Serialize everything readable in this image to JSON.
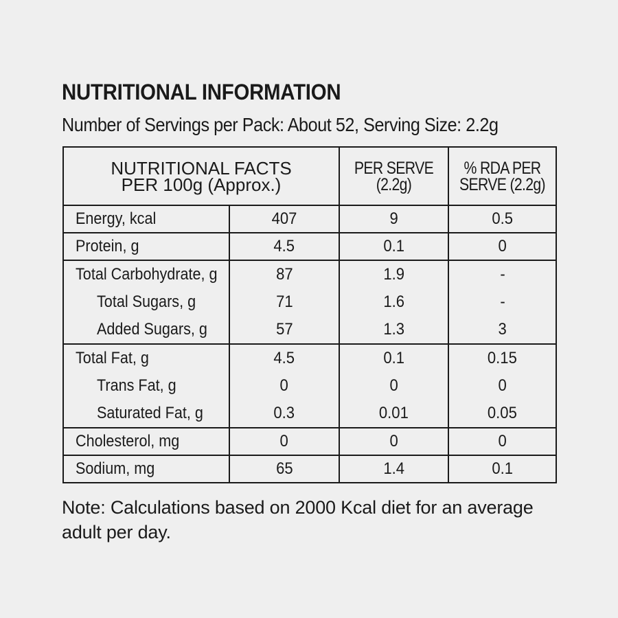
{
  "header": {
    "title": "NUTRITIONAL INFORMATION",
    "subtitle": "Number of Servings per Pack: About 52, Serving Size: 2.2g"
  },
  "table": {
    "head": {
      "main_line1": "NUTRITIONAL FACTS",
      "main_line2": "PER 100g (Approx.)",
      "per_serve_line1": "PER SERVE",
      "per_serve_line2": "(2.2g)",
      "rda_line1": "% RDA PER",
      "rda_line2": "SERVE (2.2g)"
    },
    "rows": [
      {
        "label": "Energy, kcal",
        "per100": "407",
        "perServe": "9",
        "rda": "0.5"
      },
      {
        "label": "Protein, g",
        "per100": "4.5",
        "perServe": "0.1",
        "rda": "0"
      },
      {
        "label": "Total Carbohydrate, g",
        "per100": "87",
        "perServe": "1.9",
        "rda": "-"
      },
      {
        "label": "Total Sugars, g",
        "per100": "71",
        "perServe": "1.6",
        "rda": "-"
      },
      {
        "label": "Added Sugars, g",
        "per100": "57",
        "perServe": "1.3",
        "rda": "3"
      },
      {
        "label": "Total Fat, g",
        "per100": "4.5",
        "perServe": "0.1",
        "rda": "0.15"
      },
      {
        "label": "Trans Fat, g",
        "per100": "0",
        "perServe": "0",
        "rda": "0"
      },
      {
        "label": "Saturated Fat, g",
        "per100": "0.3",
        "perServe": "0.01",
        "rda": "0.05"
      },
      {
        "label": "Cholesterol, mg",
        "per100": "0",
        "perServe": "0",
        "rda": "0"
      },
      {
        "label": "Sodium, mg",
        "per100": "65",
        "perServe": "1.4",
        "rda": "0.1"
      }
    ]
  },
  "note": "Note: Calculations based on 2000 Kcal diet for an average adult per day."
}
